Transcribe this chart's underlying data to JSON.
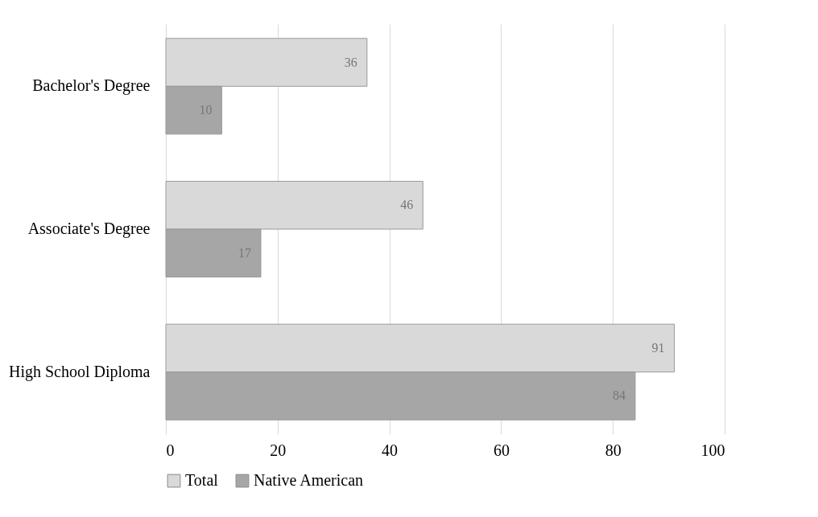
{
  "chart_data": {
    "type": "bar",
    "orientation": "horizontal",
    "categories": [
      "Bachelor's Degree",
      "Associate's Degree",
      "High School Diploma"
    ],
    "series": [
      {
        "name": "Total",
        "color": "#d9d9d9",
        "values": [
          36,
          46,
          91
        ]
      },
      {
        "name": "Native American",
        "color": "#a6a6a6",
        "values": [
          10,
          17,
          84
        ]
      }
    ],
    "xlim": [
      0,
      100
    ],
    "xticks": [
      0,
      20,
      40,
      60,
      80,
      100
    ],
    "grid": "x",
    "legend": "bottom",
    "data_labels": true
  }
}
